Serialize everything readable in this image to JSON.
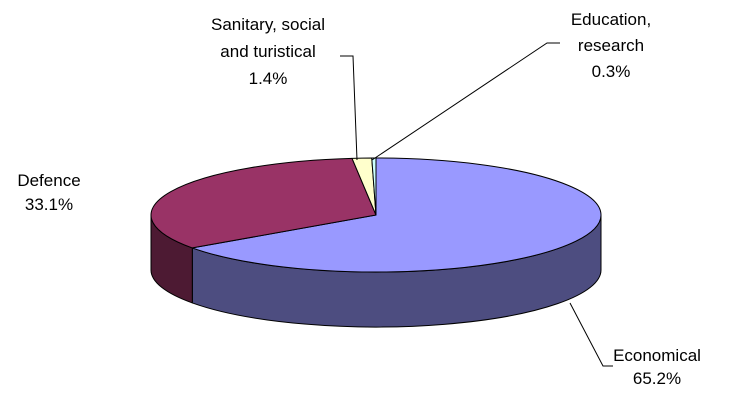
{
  "chart_data": {
    "type": "pie",
    "style": "3d",
    "title": "",
    "slices": [
      {
        "label_lines": [
          "Economical"
        ],
        "value_label": "65.2%",
        "value": 65.2,
        "top_color": "#9999ff",
        "side_color": "#4d4d80"
      },
      {
        "label_lines": [
          "Defence"
        ],
        "value_label": "33.1%",
        "value": 33.1,
        "top_color": "#993366",
        "side_color": "#4d1a33"
      },
      {
        "label_lines": [
          "Sanitary, social",
          "and turistical"
        ],
        "value_label": "1.4%",
        "value": 1.4,
        "top_color": "#ffffcc",
        "side_color": "#808066"
      },
      {
        "label_lines": [
          "Education,",
          "research"
        ],
        "value_label": "0.3%",
        "value": 0.3,
        "top_color": "#ccffff",
        "side_color": "#668080"
      }
    ],
    "legend": "none",
    "grid": false
  }
}
